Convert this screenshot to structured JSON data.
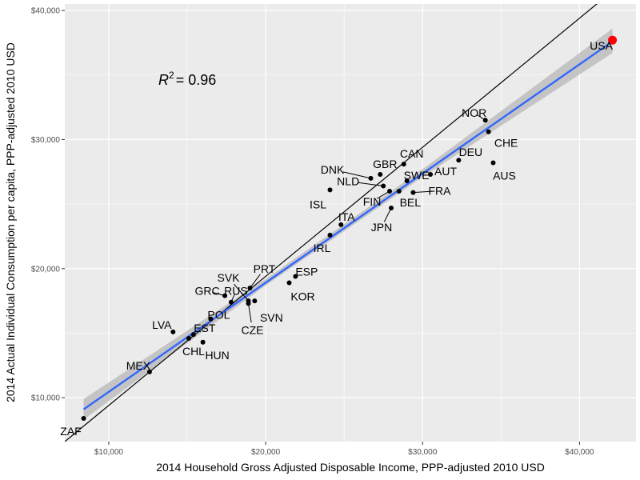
{
  "chart_data": {
    "type": "scatter",
    "xlabel": "2014 Household Gross Adjusted Disposable Income, PPP-adjusted 2010 USD",
    "ylabel": "2014 Actual Individual Consumption per capita, PPP-adjusted 2010 USD",
    "xlim": [
      7200,
      43600
    ],
    "ylim": [
      6600,
      40500
    ],
    "x_ticks": [
      {
        "value": 10000,
        "label": "$10,000"
      },
      {
        "value": 20000,
        "label": "$20,000"
      },
      {
        "value": 30000,
        "label": "$30,000"
      },
      {
        "value": 40000,
        "label": "$40,000"
      }
    ],
    "y_ticks": [
      {
        "value": 10000,
        "label": "$10,000"
      },
      {
        "value": 20000,
        "label": "$20,000"
      },
      {
        "value": 30000,
        "label": "$30,000"
      },
      {
        "value": 40000,
        "label": "$40,000"
      }
    ],
    "grid": true,
    "annotation": {
      "r2_prefix": "R",
      "r2_exponent": "2",
      "r2_value": "= 0.96"
    },
    "highlight_color": "#ff0000",
    "point_color": "#000000",
    "fit_line_color": "#3366ff",
    "confidence_band_color": "#bdbdbd",
    "reference_line_color": "#000000",
    "fit_line": {
      "x": [
        8400,
        42100
      ],
      "y": [
        9100,
        37600
      ]
    },
    "confidence_band": {
      "x": [
        8400,
        20000,
        30000,
        42100
      ],
      "lower": [
        8300,
        18700,
        27100,
        36700
      ],
      "upper": [
        9900,
        19200,
        27700,
        38600
      ]
    },
    "reference_line": {
      "x": [
        7200,
        43600
      ],
      "y": [
        6600,
        43000
      ]
    },
    "points": [
      {
        "label": "ZAF",
        "x": 8400,
        "y": 8400
      },
      {
        "label": "MEX",
        "x": 12600,
        "y": 12000
      },
      {
        "label": "LVA",
        "x": 14100,
        "y": 15100
      },
      {
        "label": "CHL",
        "x": 15100,
        "y": 14600
      },
      {
        "label": "EST",
        "x": 15400,
        "y": 14900
      },
      {
        "label": "HUN",
        "x": 16000,
        "y": 14300
      },
      {
        "label": "POL",
        "x": 16500,
        "y": 16100
      },
      {
        "label": "GRC",
        "x": 17400,
        "y": 17900
      },
      {
        "label": "RUS",
        "x": 17800,
        "y": 17400
      },
      {
        "label": "SVK",
        "x": 18900,
        "y": 17500
      },
      {
        "label": "CZE",
        "x": 18900,
        "y": 17300
      },
      {
        "label": "PRT",
        "x": 19000,
        "y": 18500
      },
      {
        "label": "SVN",
        "x": 19300,
        "y": 17500
      },
      {
        "label": "KOR",
        "x": 21500,
        "y": 18900
      },
      {
        "label": "ESP",
        "x": 21900,
        "y": 19400
      },
      {
        "label": "IRL",
        "x": 24100,
        "y": 22600
      },
      {
        "label": "ITA",
        "x": 24800,
        "y": 23400
      },
      {
        "label": "ISL",
        "x": 24100,
        "y": 26100
      },
      {
        "label": "DNK",
        "x": 26700,
        "y": 27000
      },
      {
        "label": "GBR",
        "x": 27300,
        "y": 27300
      },
      {
        "label": "NLD",
        "x": 27500,
        "y": 26400
      },
      {
        "label": "FIN",
        "x": 27900,
        "y": 26000
      },
      {
        "label": "JPN",
        "x": 28000,
        "y": 24700
      },
      {
        "label": "BEL",
        "x": 28500,
        "y": 26000
      },
      {
        "label": "CAN",
        "x": 28800,
        "y": 28100
      },
      {
        "label": "SWE",
        "x": 29000,
        "y": 26800
      },
      {
        "label": "FRA",
        "x": 29400,
        "y": 25900
      },
      {
        "label": "AUT",
        "x": 30500,
        "y": 27300
      },
      {
        "label": "DEU",
        "x": 32300,
        "y": 28400
      },
      {
        "label": "NOR",
        "x": 34000,
        "y": 31500
      },
      {
        "label": "CHE",
        "x": 34200,
        "y": 30600
      },
      {
        "label": "AUS",
        "x": 34500,
        "y": 28200
      },
      {
        "label": "USA",
        "x": 42100,
        "y": 37700,
        "highlight": true
      }
    ]
  }
}
